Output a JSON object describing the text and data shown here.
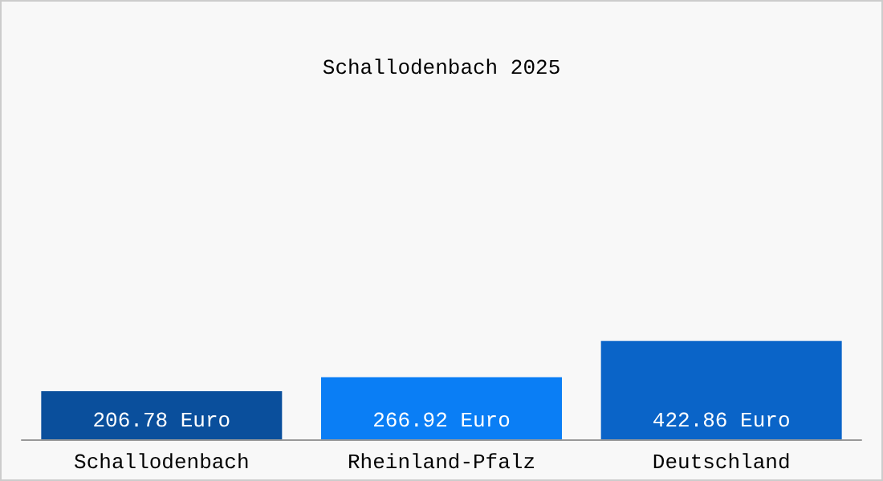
{
  "chart_data": {
    "type": "bar",
    "title": "Schallodenbach 2025",
    "categories": [
      "Schallodenbach",
      "Rheinland-Pfalz",
      "Deutschland"
    ],
    "values": [
      206.78,
      266.92,
      422.86
    ],
    "colors": [
      "#0a4f9c",
      "#0a7ef5",
      "#0a64c8"
    ],
    "value_labels": [
      "206.78 Euro",
      "266.92 Euro",
      "422.86 Euro"
    ]
  }
}
